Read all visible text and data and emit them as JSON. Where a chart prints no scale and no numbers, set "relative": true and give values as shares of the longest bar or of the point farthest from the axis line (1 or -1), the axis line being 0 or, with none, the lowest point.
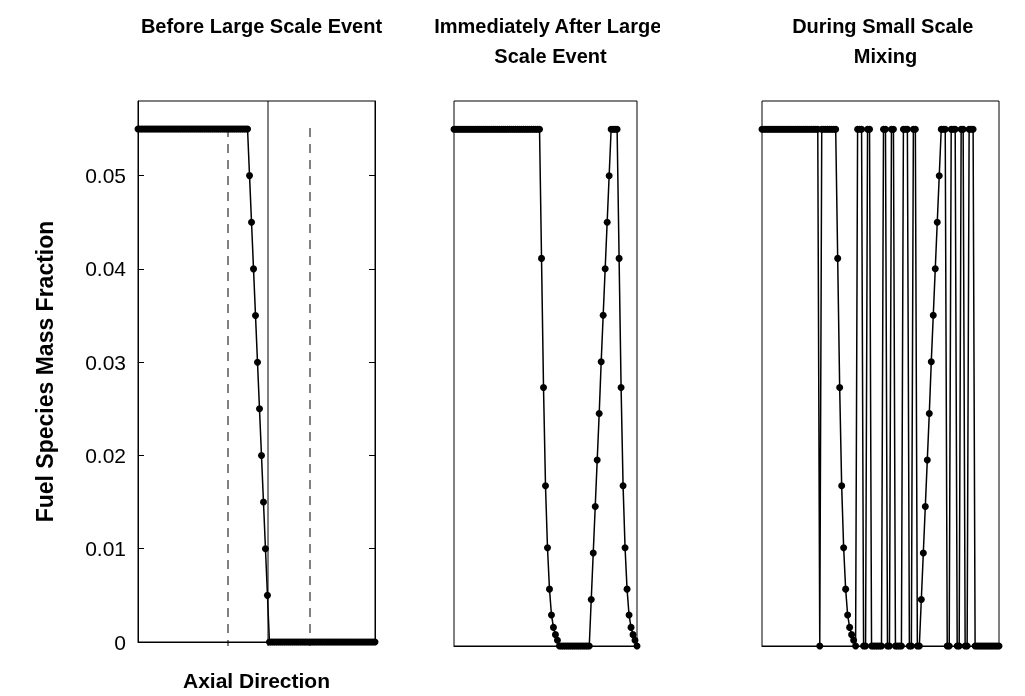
{
  "chart_data": [
    {
      "type": "line",
      "title": "Before Large Scale Event",
      "xlabel": "Axial Direction",
      "ylabel": "Fuel Species Mass Fraction",
      "ylim": [
        0,
        0.058
      ],
      "yticks": [
        0,
        0.01,
        0.02,
        0.03,
        0.04,
        0.05
      ],
      "tick_labels": "y",
      "marker": "circle",
      "line_style": "solid",
      "categories": [
        null,
        null,
        null,
        null,
        null,
        null,
        null,
        null,
        null,
        null,
        null,
        null,
        null,
        null,
        null,
        null,
        null,
        null,
        null,
        null,
        null,
        null,
        null,
        null,
        null,
        null,
        null,
        null,
        null,
        null,
        null,
        null,
        null,
        null,
        null,
        null,
        null,
        null,
        null,
        null,
        null,
        null,
        null,
        null,
        null,
        null,
        null,
        null,
        null,
        null,
        null,
        null,
        null,
        null,
        null,
        null,
        null,
        null,
        null,
        null,
        null,
        null,
        null,
        null,
        null,
        null,
        null,
        null,
        null,
        null,
        null,
        null,
        null,
        null,
        null,
        null,
        null,
        null,
        null,
        null,
        null,
        null,
        null,
        null,
        null,
        null,
        null,
        null,
        null,
        null,
        null,
        null,
        null,
        null,
        null,
        null,
        null,
        null,
        null,
        null,
        null,
        null,
        null,
        null,
        null,
        null,
        null,
        null,
        null,
        null,
        null,
        null,
        null,
        null,
        null,
        null,
        null,
        null,
        null,
        null
      ],
      "series": [
        {
          "color": "#000000",
          "values": [
            0.055,
            0.055,
            0.055,
            0.055,
            0.055,
            0.055,
            0.055,
            0.055,
            0.055,
            0.055,
            0.055,
            0.055,
            0.055,
            0.055,
            0.055,
            0.055,
            0.055,
            0.055,
            0.055,
            0.055,
            0.055,
            0.055,
            0.055,
            0.055,
            0.055,
            0.055,
            0.055,
            0.055,
            0.055,
            0.055,
            0.055,
            0.055,
            0.055,
            0.055,
            0.055,
            0.055,
            0.055,
            0.055,
            0.055,
            0.055,
            0.055,
            0.055,
            0.055,
            0.055,
            0.055,
            0.055,
            0.055,
            0.055,
            0.055,
            0.055,
            0.055,
            0.055,
            0.055,
            0.055,
            0.055,
            0.055,
            0.05,
            0.045,
            0.04,
            0.035,
            0.03,
            0.025,
            0.02,
            0.015,
            0.01,
            0.005,
            0,
            0,
            0,
            0,
            0,
            0,
            0,
            0,
            0,
            0,
            0,
            0,
            0,
            0,
            0,
            0,
            0,
            0,
            0,
            0,
            0,
            0,
            0,
            0,
            0,
            0,
            0,
            0,
            0,
            0,
            0,
            0,
            0,
            0,
            0,
            0,
            0,
            0,
            0,
            0,
            0,
            0,
            0,
            0,
            0,
            0,
            0,
            0,
            0,
            0,
            0,
            0,
            0,
            0
          ]
        }
      ]
    },
    {
      "type": "line",
      "title": "Immediately After Large Scale Event",
      "relative": true,
      "tick_labels": false,
      "marker": "circle",
      "line_style": "solid",
      "categories": [
        null,
        null,
        null,
        null,
        null,
        null,
        null,
        null,
        null,
        null,
        null,
        null,
        null,
        null,
        null,
        null,
        null,
        null,
        null,
        null,
        null,
        null,
        null,
        null,
        null,
        null,
        null,
        null,
        null,
        null,
        null,
        null,
        null,
        null,
        null,
        null,
        null,
        null,
        null,
        null,
        null,
        null,
        null,
        null,
        null,
        null,
        null,
        null,
        null,
        null,
        null,
        null,
        null,
        null,
        null,
        null,
        null,
        null,
        null,
        null,
        null,
        null,
        null,
        null,
        null,
        null,
        null,
        null,
        null,
        null,
        null,
        null,
        null,
        null,
        null,
        null,
        null,
        null,
        null,
        null,
        null,
        null,
        null,
        null,
        null,
        null,
        null,
        null,
        null,
        null,
        null,
        null,
        null
      ],
      "series": [
        {
          "color": "#000000",
          "values": [
            1,
            1,
            1,
            1,
            1,
            1,
            1,
            1,
            1,
            1,
            1,
            1,
            1,
            1,
            1,
            1,
            1,
            1,
            1,
            1,
            1,
            1,
            1,
            1,
            1,
            1,
            1,
            1,
            1,
            1,
            1,
            1,
            1,
            1,
            1,
            1,
            1,
            1,
            1,
            1,
            1,
            1,
            1,
            1,
            0.75,
            0.5,
            0.31,
            0.19,
            0.11,
            0.06,
            0.036,
            0.022,
            0.011,
            0,
            0,
            0,
            0,
            0,
            0,
            0,
            0,
            0,
            0,
            0,
            0,
            0,
            0,
            0,
            0,
            0.09,
            0.18,
            0.27,
            0.36,
            0.45,
            0.55,
            0.64,
            0.73,
            0.82,
            0.91,
            1,
            1,
            1,
            1,
            0.75,
            0.5,
            0.31,
            0.19,
            0.11,
            0.06,
            0.036,
            0.022,
            0.011,
            0
          ]
        }
      ]
    },
    {
      "type": "line",
      "title": "During Small Scale Mixing",
      "relative": true,
      "tick_labels": false,
      "marker": "circle",
      "line_style": "solid",
      "categories": [
        null,
        null,
        null,
        null,
        null,
        null,
        null,
        null,
        null,
        null,
        null,
        null,
        null,
        null,
        null,
        null,
        null,
        null,
        null,
        null,
        null,
        null,
        null,
        null,
        null,
        null,
        null,
        null,
        null,
        null,
        null,
        null,
        null,
        null,
        null,
        null,
        null,
        null,
        null,
        null,
        null,
        null,
        null,
        null,
        null,
        null,
        null,
        null,
        null,
        null,
        null,
        null,
        null,
        null,
        null,
        null,
        null,
        null,
        null,
        null,
        null,
        null,
        null,
        null,
        null,
        null,
        null,
        null,
        null,
        null,
        null,
        null,
        null,
        null,
        null,
        null,
        null,
        null,
        null,
        null,
        null,
        null,
        null,
        null,
        null,
        null,
        null,
        null,
        null,
        null,
        null,
        null,
        null,
        null,
        null,
        null,
        null,
        null,
        null,
        null,
        null,
        null,
        null,
        null,
        null,
        null,
        null,
        null,
        null,
        null,
        null,
        null,
        null,
        null,
        null,
        null,
        null,
        null,
        null,
        null
      ],
      "series": [
        {
          "color": "#000000",
          "values": [
            1,
            1,
            1,
            1,
            1,
            1,
            1,
            1,
            1,
            1,
            1,
            1,
            1,
            1,
            1,
            1,
            1,
            1,
            1,
            1,
            1,
            1,
            1,
            1,
            1,
            1,
            1,
            1,
            1,
            0,
            1,
            1,
            1,
            1,
            1,
            1,
            1,
            1,
            0.75,
            0.5,
            0.31,
            0.19,
            0.11,
            0.06,
            0.036,
            0.022,
            0.011,
            0,
            1,
            1,
            1,
            0,
            0,
            1,
            1,
            0,
            0,
            0,
            0,
            0,
            0,
            1,
            1,
            0,
            0,
            1,
            1,
            0,
            0,
            0,
            0,
            1,
            1,
            1,
            0,
            0,
            1,
            1,
            0,
            0,
            0.09,
            0.18,
            0.27,
            0.36,
            0.45,
            0.55,
            0.64,
            0.73,
            0.82,
            0.91,
            1,
            1,
            1,
            0,
            0,
            1,
            1,
            1,
            0,
            0,
            1,
            1,
            0,
            0,
            1,
            1,
            1,
            0,
            0,
            0,
            0,
            0,
            0,
            0,
            0,
            0,
            0,
            0,
            0,
            0
          ]
        }
      ]
    }
  ]
}
